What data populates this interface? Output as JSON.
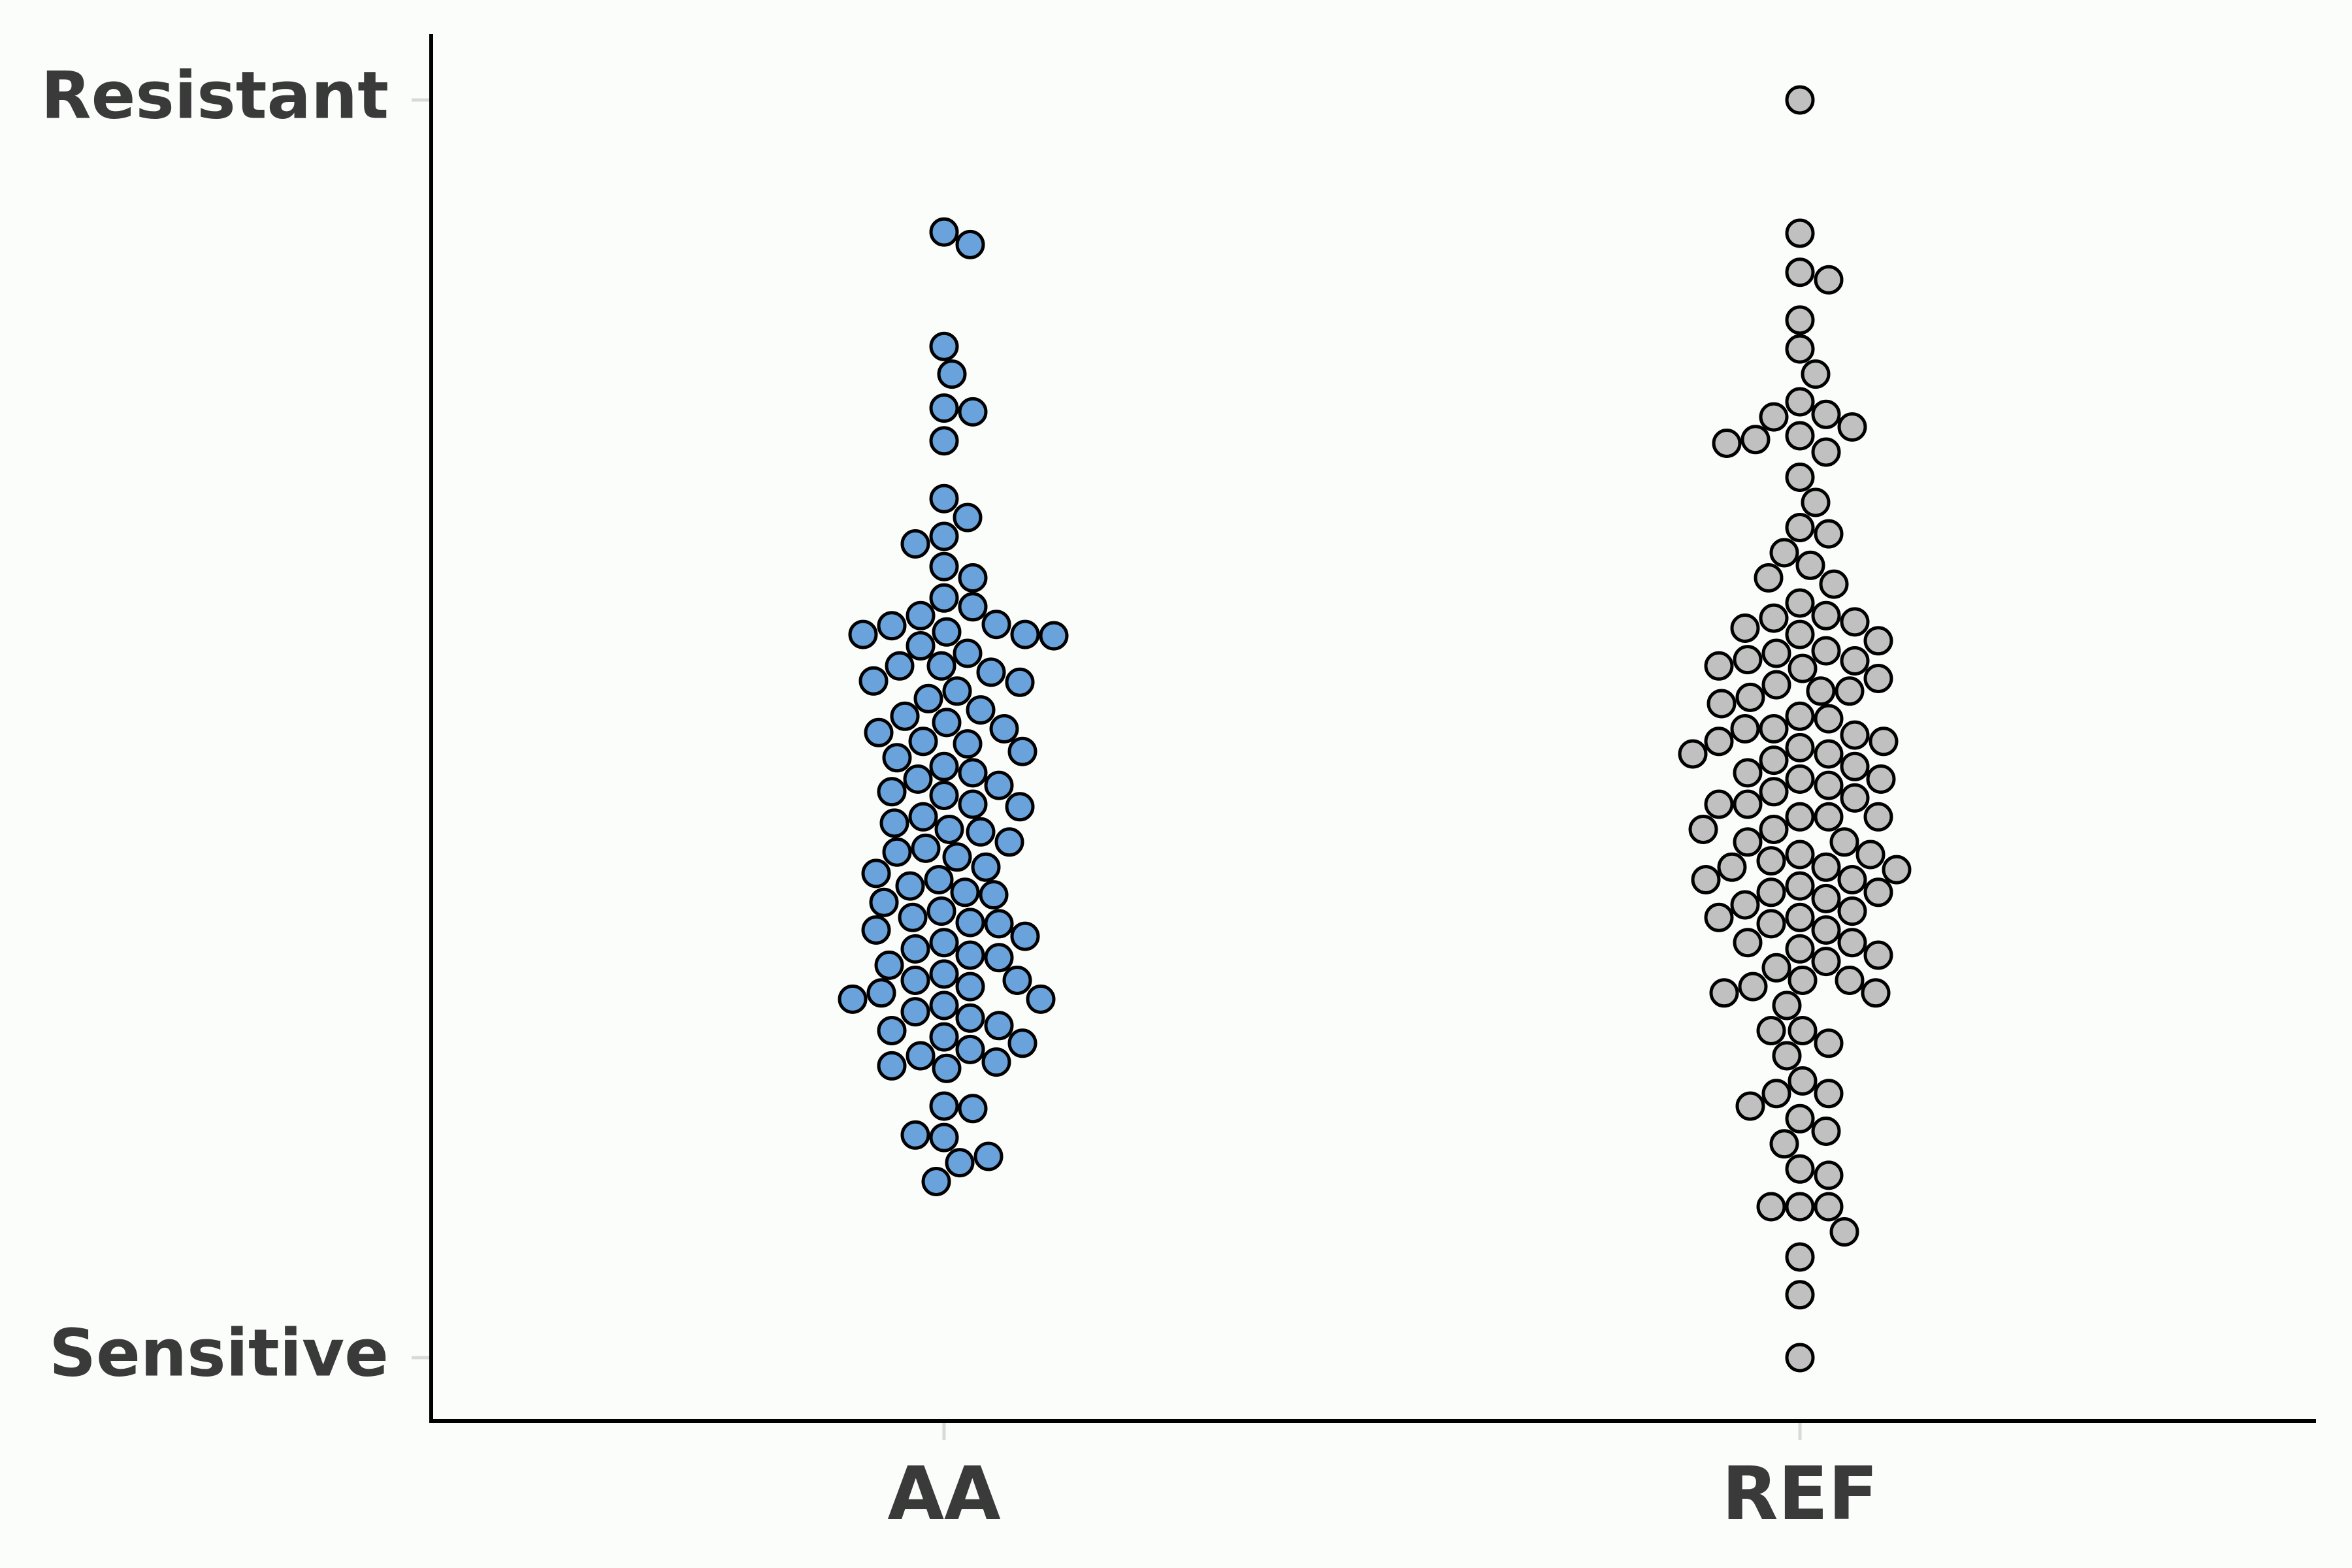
{
  "chart_data": {
    "type": "scatter",
    "style": "beeswarm",
    "title": "",
    "xlabel": "",
    "ylabel": "",
    "categories": [
      "AA",
      "REF"
    ],
    "y_tick_labels": {
      "low": "Sensitive",
      "high": "Resistant"
    },
    "ylim": [
      0,
      1
    ],
    "grid": false,
    "legend": "none",
    "series": [
      {
        "category": "AA",
        "color": "#6aa3dc",
        "values": [
          0.895,
          0.885,
          0.804,
          0.782,
          0.755,
          0.752,
          0.729,
          0.683,
          0.668,
          0.653,
          0.647,
          0.629,
          0.62,
          0.604,
          0.597,
          0.59,
          0.583,
          0.582,
          0.577,
          0.575,
          0.575,
          0.574,
          0.566,
          0.56,
          0.55,
          0.55,
          0.545,
          0.538,
          0.537,
          0.53,
          0.524,
          0.515,
          0.51,
          0.505,
          0.5,
          0.497,
          0.49,
          0.488,
          0.482,
          0.477,
          0.47,
          0.465,
          0.46,
          0.455,
          0.45,
          0.447,
          0.44,
          0.438,
          0.43,
          0.425,
          0.42,
          0.418,
          0.41,
          0.405,
          0.402,
          0.398,
          0.39,
          0.385,
          0.38,
          0.375,
          0.37,
          0.368,
          0.362,
          0.355,
          0.35,
          0.346,
          0.345,
          0.34,
          0.335,
          0.33,
          0.325,
          0.32,
          0.318,
          0.312,
          0.305,
          0.3,
          0.3,
          0.295,
          0.29,
          0.285,
          0.285,
          0.28,
          0.275,
          0.27,
          0.264,
          0.26,
          0.255,
          0.25,
          0.245,
          0.24,
          0.235,
          0.232,
          0.23,
          0.2,
          0.198,
          0.175,
          0.177,
          0.155,
          0.16,
          0.14
        ]
      },
      {
        "category": "REF",
        "color": "#c0c0c0",
        "values": [
          1.0,
          0.894,
          0.863,
          0.857,
          0.825,
          0.802,
          0.782,
          0.76,
          0.75,
          0.748,
          0.74,
          0.733,
          0.73,
          0.727,
          0.72,
          0.7,
          0.68,
          0.66,
          0.655,
          0.64,
          0.63,
          0.62,
          0.615,
          0.6,
          0.59,
          0.588,
          0.585,
          0.58,
          0.575,
          0.57,
          0.562,
          0.56,
          0.555,
          0.554,
          0.55,
          0.548,
          0.54,
          0.535,
          0.53,
          0.53,
          0.525,
          0.52,
          0.51,
          0.508,
          0.5,
          0.5,
          0.495,
          0.49,
          0.49,
          0.485,
          0.48,
          0.48,
          0.475,
          0.47,
          0.465,
          0.46,
          0.46,
          0.455,
          0.45,
          0.445,
          0.44,
          0.44,
          0.43,
          0.43,
          0.43,
          0.42,
          0.42,
          0.41,
          0.41,
          0.4,
          0.4,
          0.395,
          0.39,
          0.39,
          0.388,
          0.38,
          0.38,
          0.375,
          0.37,
          0.37,
          0.365,
          0.36,
          0.355,
          0.35,
          0.35,
          0.345,
          0.34,
          0.33,
          0.33,
          0.325,
          0.32,
          0.315,
          0.31,
          0.3,
          0.3,
          0.295,
          0.29,
          0.29,
          0.28,
          0.26,
          0.26,
          0.25,
          0.24,
          0.22,
          0.21,
          0.21,
          0.2,
          0.19,
          0.18,
          0.17,
          0.15,
          0.145,
          0.12,
          0.12,
          0.12,
          0.1,
          0.08,
          0.05,
          0.0
        ]
      }
    ]
  }
}
